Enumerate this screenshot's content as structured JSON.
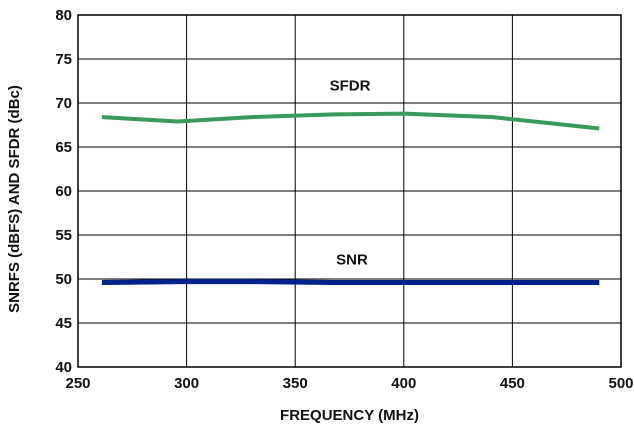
{
  "chart_data": {
    "type": "line",
    "title": "",
    "xlabel": "FREQUENCY (MHz)",
    "ylabel": "SNRFS (dBFS) AND SFDR (dBc)",
    "xlim": [
      250,
      500
    ],
    "ylim": [
      40,
      80
    ],
    "x_ticks": [
      "250",
      "300",
      "350",
      "400",
      "450",
      "500"
    ],
    "y_ticks": [
      "40",
      "45",
      "50",
      "55",
      "60",
      "65",
      "70",
      "75",
      "80"
    ],
    "grid": true,
    "series": [
      {
        "name": "SFDR",
        "color": "#3a9a5c",
        "x": [
          261,
          274,
          296,
          330,
          368,
          400,
          441,
          490
        ],
        "y": [
          68.4,
          68.2,
          67.9,
          68.4,
          68.7,
          68.8,
          68.4,
          67.1
        ]
      },
      {
        "name": "SNR",
        "color": "#00208a",
        "x": [
          261,
          296,
          330,
          368,
          400,
          441,
          490
        ],
        "y": [
          49.6,
          49.7,
          49.7,
          49.6,
          49.6,
          49.6,
          49.6
        ]
      }
    ]
  }
}
